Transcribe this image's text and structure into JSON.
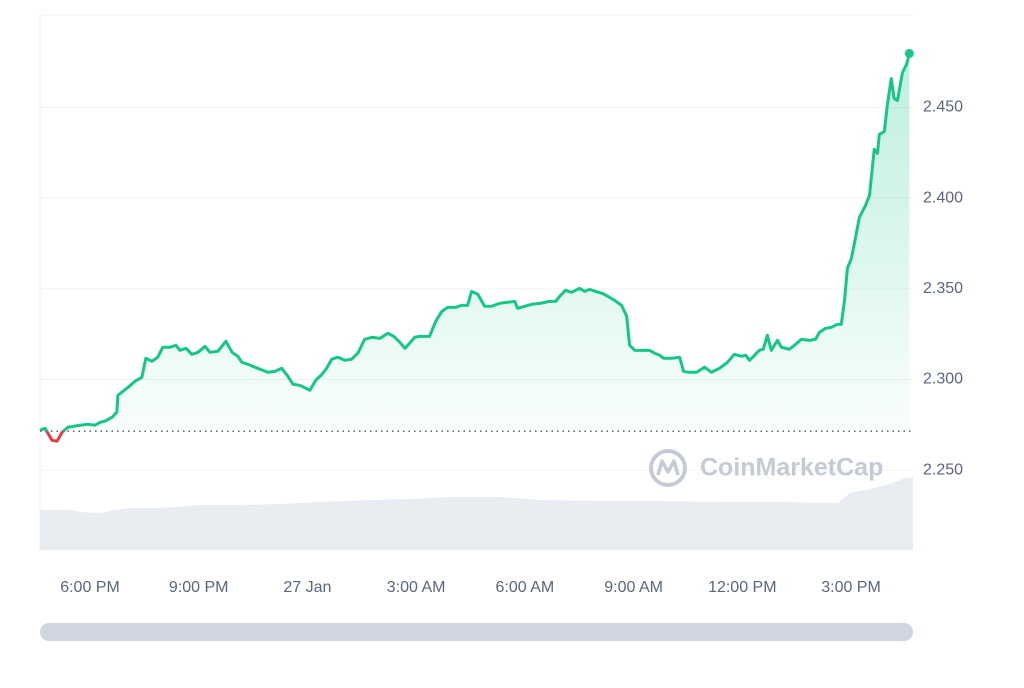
{
  "chart_data": {
    "type": "line",
    "watermark": "CoinMarketCap",
    "color": "#16c784",
    "down_color": "#ea3943",
    "baseline": 2.2715,
    "grid": true,
    "xlim": [
      16.62,
      40.71
    ],
    "ylim": [
      2.206,
      2.501
    ],
    "yticks": [
      {
        "value": 2.25,
        "label": "2.250"
      },
      {
        "value": 2.3,
        "label": "2.300"
      },
      {
        "value": 2.35,
        "label": "2.350"
      },
      {
        "value": 2.4,
        "label": "2.400"
      },
      {
        "value": 2.45,
        "label": "2.450"
      }
    ],
    "xticks": [
      {
        "value": 18,
        "label": "6:00 PM"
      },
      {
        "value": 21,
        "label": "9:00 PM"
      },
      {
        "value": 24,
        "label": "27 Jan"
      },
      {
        "value": 27,
        "label": "3:00 AM"
      },
      {
        "value": 30,
        "label": "6:00 AM"
      },
      {
        "value": 33,
        "label": "9:00 AM"
      },
      {
        "value": 36,
        "label": "12:00 PM"
      },
      {
        "value": 39,
        "label": "3:00 PM"
      }
    ],
    "x": [
      16.62,
      16.76,
      16.95,
      17.09,
      17.23,
      17.39,
      17.72,
      17.94,
      18.14,
      18.28,
      18.41,
      18.61,
      18.74,
      18.77,
      18.88,
      19.05,
      19.24,
      19.43,
      19.54,
      19.71,
      19.87,
      20.01,
      20.21,
      20.37,
      20.48,
      20.65,
      20.81,
      20.98,
      21.17,
      21.31,
      21.53,
      21.75,
      21.92,
      22.08,
      22.19,
      22.36,
      22.55,
      22.69,
      22.91,
      23.1,
      23.29,
      23.46,
      23.6,
      23.79,
      24.07,
      24.23,
      24.4,
      24.53,
      24.67,
      24.84,
      25.03,
      25.22,
      25.39,
      25.58,
      25.78,
      26.0,
      26.22,
      26.38,
      26.55,
      26.69,
      26.82,
      26.96,
      27.1,
      27.37,
      27.54,
      27.71,
      27.87,
      28.09,
      28.26,
      28.42,
      28.53,
      28.7,
      28.89,
      29.08,
      29.3,
      29.52,
      29.72,
      29.8,
      29.99,
      30.19,
      30.41,
      30.68,
      30.85,
      30.96,
      31.12,
      31.29,
      31.51,
      31.65,
      31.79,
      31.95,
      32.14,
      32.34,
      32.47,
      32.67,
      32.81,
      32.89,
      33.03,
      33.22,
      33.44,
      33.58,
      33.72,
      33.83,
      34.05,
      34.27,
      34.38,
      34.54,
      34.74,
      34.96,
      35.15,
      35.37,
      35.59,
      35.78,
      35.98,
      36.09,
      36.2,
      36.31,
      36.47,
      36.58,
      36.69,
      36.8,
      36.97,
      37.08,
      37.3,
      37.47,
      37.63,
      37.85,
      38.02,
      38.13,
      38.29,
      38.46,
      38.62,
      38.73,
      38.82,
      38.9,
      39.01,
      39.12,
      39.23,
      39.4,
      39.51,
      39.64,
      39.73,
      39.78,
      39.92,
      40.0,
      40.11,
      40.19,
      40.28,
      40.42,
      40.53,
      40.61
    ],
    "values": [
      2.272,
      2.2731,
      2.2665,
      2.266,
      2.2709,
      2.2737,
      2.2748,
      2.2753,
      2.2748,
      2.2764,
      2.277,
      2.2792,
      2.282,
      2.2913,
      2.293,
      2.2957,
      2.299,
      2.3012,
      2.3117,
      2.3101,
      2.3123,
      2.3178,
      2.3178,
      2.3189,
      2.3161,
      2.3172,
      2.3139,
      2.315,
      2.3183,
      2.315,
      2.3156,
      2.3211,
      2.315,
      2.3128,
      2.3095,
      2.3084,
      2.3068,
      2.3057,
      2.304,
      2.3045,
      2.3062,
      2.3018,
      2.2974,
      2.2968,
      2.2941,
      2.2996,
      2.3029,
      2.3062,
      2.3112,
      2.3123,
      2.3106,
      2.3112,
      2.3145,
      2.3222,
      2.3233,
      2.3227,
      2.3255,
      2.3238,
      2.3205,
      2.3172,
      2.32,
      2.3233,
      2.3238,
      2.3238,
      2.3321,
      2.3376,
      2.3398,
      2.3398,
      2.3409,
      2.3409,
      2.3486,
      2.347,
      2.3404,
      2.3404,
      2.342,
      2.3426,
      2.3431,
      2.3393,
      2.3404,
      2.3415,
      2.342,
      2.3431,
      2.3431,
      2.3459,
      2.3492,
      2.3481,
      2.3503,
      2.3486,
      2.3497,
      2.3486,
      2.3475,
      2.3453,
      2.3437,
      2.3409,
      2.3349,
      2.3189,
      2.3161,
      2.3161,
      2.3161,
      2.3145,
      2.3134,
      2.3117,
      2.3117,
      2.3123,
      2.3045,
      2.304,
      2.304,
      2.3068,
      2.304,
      2.3062,
      2.3095,
      2.3139,
      2.3128,
      2.3134,
      2.3106,
      2.3128,
      2.3161,
      2.3167,
      2.3244,
      2.3161,
      2.3216,
      2.3178,
      2.3167,
      2.3194,
      2.3222,
      2.3216,
      2.3222,
      2.326,
      2.3282,
      2.3288,
      2.3304,
      2.3304,
      2.3437,
      2.3613,
      2.3668,
      2.3778,
      2.3894,
      2.396,
      2.4015,
      2.4269,
      2.4247,
      2.4351,
      2.4368,
      2.4511,
      2.466,
      2.455,
      2.4539,
      2.4693,
      2.4737,
      2.4798
    ]
  }
}
